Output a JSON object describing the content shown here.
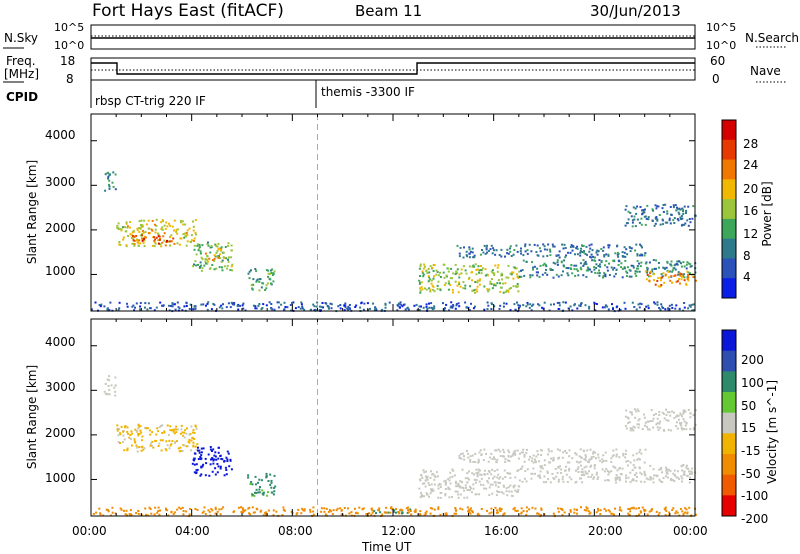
{
  "header": {
    "station": "Fort Hays East (fitACF)",
    "beam": "Beam 11",
    "date": "30/Jun/2013"
  },
  "strip": {
    "nsky_label": "N.Sky",
    "nsearch_label": "N.Search",
    "noise_ticks": [
      "10^5",
      "10^0"
    ],
    "freq_label": "Freq.",
    "freq_unit": "[MHz]",
    "freq_ticks": [
      "18",
      "8"
    ],
    "nave_label": "Nave",
    "nave_ticks": [
      "60",
      "0"
    ],
    "cpid_label": "CPID",
    "cpid_segments": [
      {
        "text": "rbsp CT-trig 220 IF",
        "start_hour": 0
      },
      {
        "text": "themis -3300 IF",
        "start_hour": 9
      }
    ]
  },
  "x_axis": {
    "label": "Time UT",
    "ticks": [
      "00:00",
      "04:00",
      "08:00",
      "12:00",
      "16:00",
      "20:00",
      "00:00"
    ],
    "range_hours": [
      0,
      24
    ],
    "dashed_marker_hour": 9.0
  },
  "y_axis": {
    "label": "Slant Range [km]",
    "ticks": [
      "4000",
      "3000",
      "2000",
      "1000"
    ],
    "range_km": [
      180,
      4600
    ]
  },
  "power_scale": {
    "label": "Power [dB]",
    "ticks": [
      "28",
      "24",
      "20",
      "16",
      "12",
      "8",
      "4"
    ],
    "colors": [
      "#0a1ee6",
      "#2a52b8",
      "#2f7a8a",
      "#3ea65a",
      "#9bc63c",
      "#f0b800",
      "#f07800",
      "#e63a00",
      "#d40000"
    ]
  },
  "velocity_scale": {
    "label": "Velocity [m s^-1]",
    "ticks": [
      "200",
      "100",
      "50",
      "15",
      "-15",
      "-50",
      "-100",
      "-200"
    ],
    "colors": [
      "#0a16d8",
      "#2f4fb0",
      "#2e8a6a",
      "#64c832",
      "#c8c8c0",
      "#f0b400",
      "#f08c00",
      "#f05a00",
      "#e60000"
    ]
  },
  "chart_data": [
    {
      "type": "heatmap",
      "title": "Power",
      "xlabel": "Time UT",
      "ylabel": "Slant Range [km]",
      "xlim": [
        0,
        24
      ],
      "ylim": [
        180,
        4600
      ],
      "colorbar": "Power [dB]",
      "regions": [
        {
          "t0": 0.5,
          "t1": 1.0,
          "r0": 2900,
          "r1": 3350,
          "power": 10
        },
        {
          "t0": 1.0,
          "t1": 4.2,
          "r0": 1650,
          "r1": 2250,
          "power": 18
        },
        {
          "t0": 1.6,
          "t1": 3.4,
          "r0": 1700,
          "r1": 1900,
          "power": 26
        },
        {
          "t0": 4.0,
          "t1": 5.6,
          "r0": 1100,
          "r1": 1750,
          "power": 14
        },
        {
          "t0": 4.5,
          "t1": 5.2,
          "r0": 1300,
          "r1": 1600,
          "power": 20
        },
        {
          "t0": 6.2,
          "t1": 7.3,
          "r0": 650,
          "r1": 1150,
          "power": 12
        },
        {
          "t0": 13.0,
          "t1": 17.0,
          "r0": 600,
          "r1": 1250,
          "power": 16
        },
        {
          "t0": 17.0,
          "t1": 24.0,
          "r0": 950,
          "r1": 1350,
          "power": 10
        },
        {
          "t0": 22.0,
          "t1": 24.0,
          "r0": 750,
          "r1": 1100,
          "power": 22
        },
        {
          "t0": 21.2,
          "t1": 24.0,
          "r0": 2100,
          "r1": 2600,
          "power": 8
        },
        {
          "t0": 14.5,
          "t1": 22.0,
          "r0": 1400,
          "r1": 1700,
          "power": 8
        },
        {
          "t0": 0.0,
          "t1": 24.0,
          "r0": 200,
          "r1": 400,
          "power": 6
        }
      ]
    },
    {
      "type": "heatmap",
      "title": "Velocity",
      "xlabel": "Time UT",
      "ylabel": "Slant Range [km]",
      "xlim": [
        0,
        24
      ],
      "ylim": [
        180,
        4600
      ],
      "colorbar": "Velocity [m s^-1]",
      "regions": [
        {
          "t0": 0.5,
          "t1": 1.0,
          "r0": 2900,
          "r1": 3350,
          "velocity": 0
        },
        {
          "t0": 1.0,
          "t1": 4.2,
          "r0": 1650,
          "r1": 2250,
          "velocity": -20
        },
        {
          "t0": 4.0,
          "t1": 5.6,
          "r0": 1100,
          "r1": 1750,
          "velocity": 200
        },
        {
          "t0": 6.2,
          "t1": 7.3,
          "r0": 650,
          "r1": 1150,
          "velocity": 40
        },
        {
          "t0": 13.0,
          "t1": 17.0,
          "r0": 600,
          "r1": 1250,
          "velocity": 0
        },
        {
          "t0": 17.0,
          "t1": 24.0,
          "r0": 950,
          "r1": 1350,
          "velocity": 0
        },
        {
          "t0": 21.2,
          "t1": 24.0,
          "r0": 2100,
          "r1": 2600,
          "velocity": 0
        },
        {
          "t0": 14.5,
          "t1": 22.0,
          "r0": 1400,
          "r1": 1700,
          "velocity": 0
        },
        {
          "t0": 11.0,
          "t1": 13.0,
          "r0": 260,
          "r1": 360,
          "velocity": 40
        },
        {
          "t0": 0.0,
          "t1": 24.0,
          "r0": 200,
          "r1": 400,
          "velocity": -60
        }
      ]
    }
  ]
}
